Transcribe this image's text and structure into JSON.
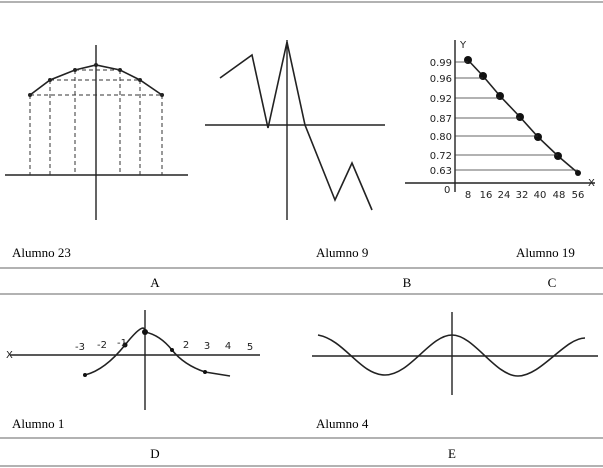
{
  "captions": [
    "Alumno 23",
    "Alumno 9",
    "Alumno 19",
    "Alumno 1",
    "Alumno 4"
  ],
  "letters": [
    "A",
    "B",
    "C",
    "D",
    "E"
  ],
  "panel_c": {
    "y_label": "Y",
    "x_label": "X",
    "origin": "0",
    "y_ticks": [
      "0.99",
      "0.96",
      "0.92",
      "0.87",
      "0.80",
      "0.72",
      "0.63"
    ],
    "x_ticks": [
      "8",
      "16",
      "24",
      "32",
      "40",
      "48",
      "56"
    ]
  },
  "panel_d": {
    "x_label": "X",
    "x_ticks": [
      "-3",
      "-2",
      "-1",
      "2",
      "3",
      "4",
      "5"
    ]
  }
}
